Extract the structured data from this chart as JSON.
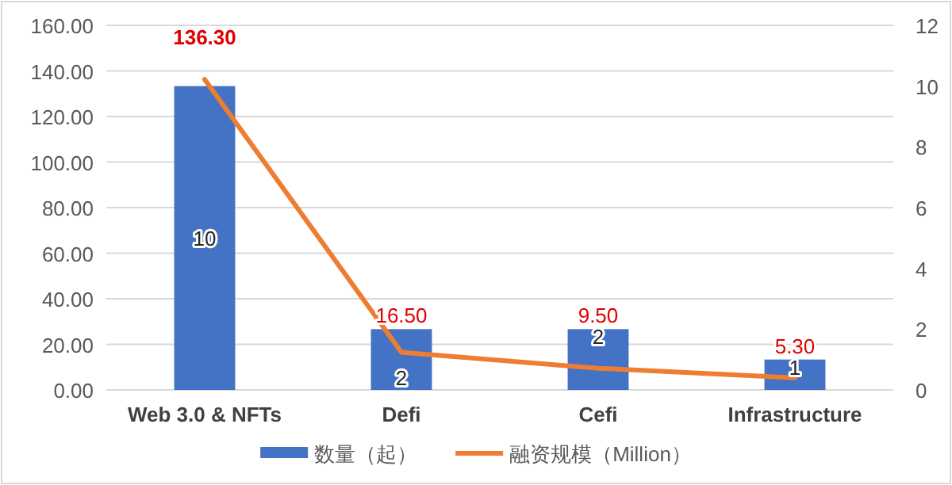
{
  "chart_data": {
    "type": "bar",
    "categories": [
      "Web 3.0 &  NFTs",
      "Defi",
      "Cefi",
      "Infrastructure"
    ],
    "series": [
      {
        "name": "数量（起）",
        "type": "bar",
        "axis": "y2",
        "color": "#4472c4",
        "values": [
          10,
          2,
          2,
          1
        ],
        "value_labels": [
          "10",
          "2",
          "2",
          "1"
        ]
      },
      {
        "name": "融资规模（Million）",
        "type": "line",
        "color": "#ed7d31",
        "values": [
          136.3,
          16.5,
          9.5,
          5.3
        ],
        "value_labels": [
          "136.30",
          "16.50",
          "9.50",
          "5.30"
        ]
      }
    ],
    "ylim": [
      0,
      160
    ],
    "yticks": [
      {
        "value": 0,
        "label": "0.00"
      },
      {
        "value": 20,
        "label": "20.00"
      },
      {
        "value": 40,
        "label": "40.00"
      },
      {
        "value": 60,
        "label": "60.00"
      },
      {
        "value": 80,
        "label": "80.00"
      },
      {
        "value": 100,
        "label": "100.00"
      },
      {
        "value": 120,
        "label": "120.00"
      },
      {
        "value": 140,
        "label": "140.00"
      },
      {
        "value": 160,
        "label": "160.00"
      }
    ],
    "y2lim": [
      0,
      12
    ],
    "y2ticks": [
      0,
      2,
      4,
      6,
      8,
      10,
      12
    ],
    "grid": "y",
    "legend": "bottom",
    "marker": "none",
    "line_style": "solid"
  }
}
